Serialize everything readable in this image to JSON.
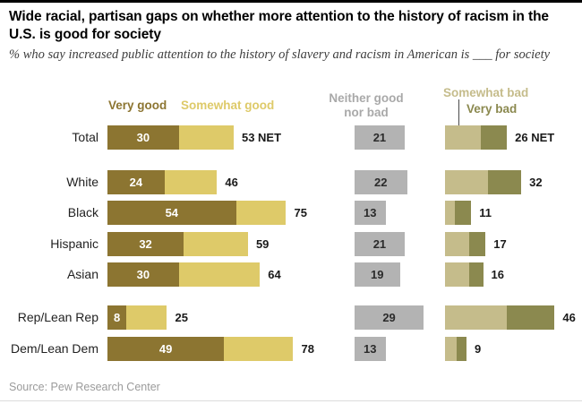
{
  "header": {
    "title": "Wide racial, partisan gaps on whether more attention to the history of racism in the U.S. is good for society",
    "subtitle": "% who say increased public attention to the history of slavery and racism in American is ___ for society"
  },
  "legend": {
    "very_good": "Very good",
    "somewhat_good": "Somewhat good",
    "neither_line1": "Neither good",
    "neither_line2": "nor bad",
    "somewhat_bad": "Somewhat bad",
    "very_bad": "Very bad"
  },
  "colors": {
    "very_good": "#8C7531",
    "somewhat_good": "#DECA69",
    "neither": "#B3B3B3",
    "somewhat_bad": "#C5BC8B",
    "very_bad": "#8B894F",
    "neither_legend_text": "#A9A9A9"
  },
  "source": "Source: Pew Research Center",
  "chart_data": {
    "type": "bar",
    "orientation": "horizontal",
    "stacked": true,
    "unit": "percent",
    "xlim": [
      0,
      100
    ],
    "title": "Wide racial, partisan gaps on whether more attention to the history of racism in the U.S. is good for society",
    "series_names": [
      "Very good",
      "Somewhat good",
      "Neither good nor bad",
      "Somewhat bad",
      "Very bad"
    ],
    "categories": [
      "Total",
      "White",
      "Black",
      "Hispanic",
      "Asian",
      "Rep/Lean Rep",
      "Dem/Lean Dem"
    ],
    "rows": [
      {
        "label": "Total",
        "very_good": 30,
        "somewhat_good": 23,
        "good_net": 53,
        "good_net_label": "53 NET",
        "neither": 21,
        "somewhat_bad": 15,
        "very_bad": 11,
        "bad_net": 26,
        "bad_net_label": "26 NET"
      },
      {
        "label": "White",
        "very_good": 24,
        "somewhat_good": 22,
        "good_net": 46,
        "good_net_label": "46",
        "neither": 22,
        "somewhat_bad": 18,
        "very_bad": 14,
        "bad_net": 32,
        "bad_net_label": "32"
      },
      {
        "label": "Black",
        "very_good": 54,
        "somewhat_good": 21,
        "good_net": 75,
        "good_net_label": "75",
        "neither": 13,
        "somewhat_bad": 4,
        "very_bad": 7,
        "bad_net": 11,
        "bad_net_label": "11"
      },
      {
        "label": "Hispanic",
        "very_good": 32,
        "somewhat_good": 27,
        "good_net": 59,
        "good_net_label": "59",
        "neither": 21,
        "somewhat_bad": 10,
        "very_bad": 7,
        "bad_net": 17,
        "bad_net_label": "17"
      },
      {
        "label": "Asian",
        "very_good": 30,
        "somewhat_good": 34,
        "good_net": 64,
        "good_net_label": "64",
        "neither": 19,
        "somewhat_bad": 10,
        "very_bad": 6,
        "bad_net": 16,
        "bad_net_label": "16"
      },
      {
        "label": "Rep/Lean Rep",
        "very_good": 8,
        "somewhat_good": 17,
        "good_net": 25,
        "good_net_label": "25",
        "neither": 29,
        "somewhat_bad": 26,
        "very_bad": 20,
        "bad_net": 46,
        "bad_net_label": "46"
      },
      {
        "label": "Dem/Lean Dem",
        "very_good": 49,
        "somewhat_good": 29,
        "good_net": 78,
        "good_net_label": "78",
        "neither": 13,
        "somewhat_bad": 5,
        "very_bad": 4,
        "bad_net": 9,
        "bad_net_label": "9"
      }
    ]
  }
}
